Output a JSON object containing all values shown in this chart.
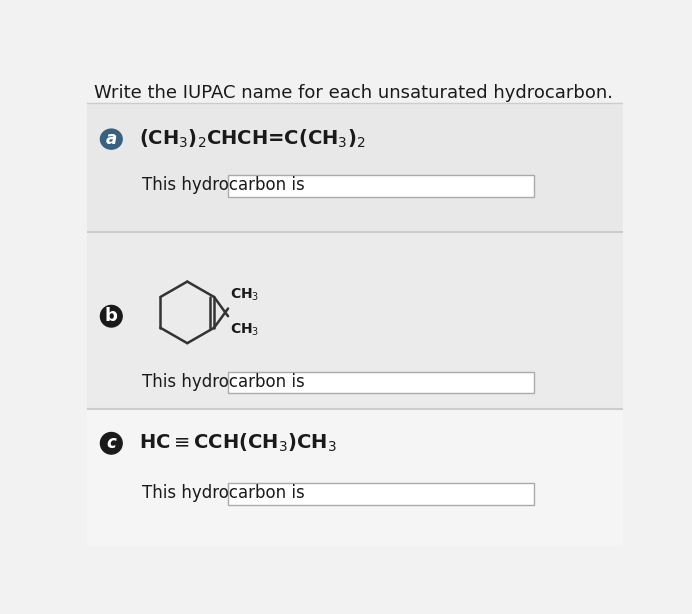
{
  "title": "Write the IUPAC name for each unsaturated hydrocarbon.",
  "bg_main": "#f2f2f2",
  "bg_section_a": "#e8e8e8",
  "bg_section_b": "#ebebeb",
  "bg_section_c": "#f5f5f5",
  "bg_white": "#ffffff",
  "sep_color": "#cccccc",
  "badge_color_a": "#3a6080",
  "badge_color_b": "#1a1a1a",
  "badge_color_c": "#1a1a1a",
  "badge_text": "#ffffff",
  "text_color": "#1a1a1a",
  "box_edge": "#aaaaaa",
  "label_a": "a",
  "label_b": "b",
  "label_c": "c",
  "prompt": "This hydrocarbon is",
  "title_fs": 13,
  "formula_fs": 14,
  "badge_fs": 12,
  "prompt_fs": 12,
  "ch3_fs": 10,
  "ring_lw": 1.8,
  "ring_color": "#333333"
}
